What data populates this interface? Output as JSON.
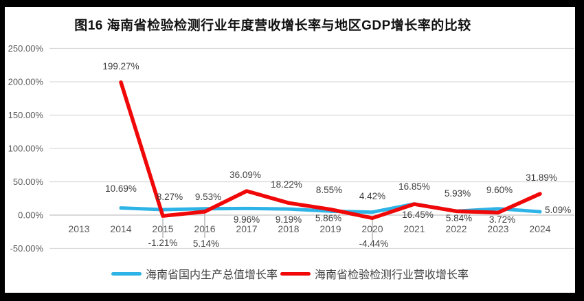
{
  "title": "图16  海南省检验检测行业年度营收增长率与地区GDP增长率的比较",
  "colors": {
    "gdp_line": "#2db3e6",
    "industry_line": "#f00808",
    "gridline": "#d9d9d9",
    "zero_line": "#c2c2c2",
    "leader_line": "#a6a6a6",
    "axis_text": "#595959",
    "data_label_text": "#3d3d3d",
    "frame": "#000000"
  },
  "legend": [
    {
      "name": "海南省国内生产总值增长率",
      "color": "#2db3e6"
    },
    {
      "name": "海南省检验检测行业营收增长率",
      "color": "#f00808"
    }
  ],
  "chart_data": {
    "type": "line",
    "title": "图16  海南省检验检测行业年度营收增长率与地区GDP增长率的比较",
    "categories": [
      "2013",
      "2014",
      "2015",
      "2016",
      "2017",
      "2018",
      "2019",
      "2020",
      "2021",
      "2022",
      "2023",
      "2024"
    ],
    "series": [
      {
        "name": "海南省国内生产总值增长率",
        "color": "#2db3e6",
        "values": [
          null,
          10.69,
          8.27,
          9.53,
          9.96,
          9.19,
          5.86,
          4.42,
          16.85,
          5.93,
          9.6,
          5.09
        ]
      },
      {
        "name": "海南省检验检测行业营收增长率",
        "color": "#f00808",
        "values": [
          null,
          199.27,
          -1.21,
          5.14,
          36.09,
          18.22,
          8.55,
          -4.44,
          16.45,
          5.84,
          3.72,
          31.89
        ]
      }
    ],
    "xlabel": "",
    "ylabel": "",
    "ylim": [
      -50,
      250
    ],
    "ytick_step": 50,
    "yticks": [
      "250.00%",
      "200.00%",
      "150.00%",
      "100.00%",
      "50.00%",
      "0.00%",
      "-50.00%"
    ],
    "ytick_format": "0.00%",
    "grid": true,
    "data_labels": true,
    "legend_position": "bottom"
  }
}
